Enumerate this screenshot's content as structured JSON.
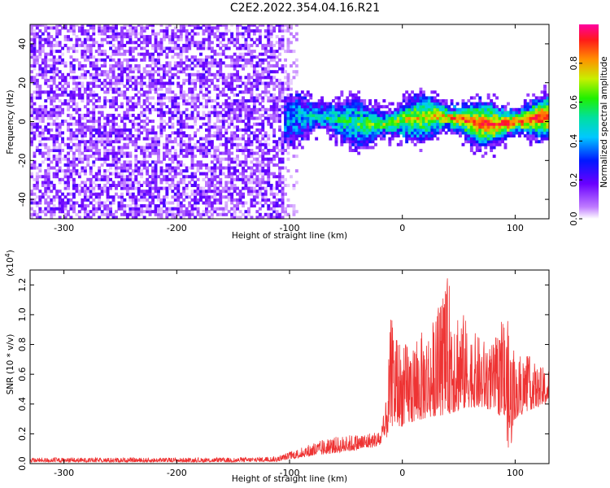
{
  "title": "C2E2.2022.354.04.16.R21",
  "chart_data": [
    {
      "type": "heatmap",
      "name": "spectrogram",
      "xlabel": "Height of straight line (km)",
      "ylabel": "Frequency (Hz)",
      "xlim": [
        -330,
        130
      ],
      "ylim": [
        -50,
        50
      ],
      "xticks": [
        -300,
        -200,
        -100,
        0,
        100
      ],
      "yticks": [
        -40,
        -20,
        0,
        20,
        40
      ],
      "x_tick_labels": [
        "-300",
        "-200",
        "-100",
        "0",
        "100"
      ],
      "y_tick_labels": [
        "-40",
        "-20",
        "0",
        "20",
        "40"
      ],
      "colorbar": {
        "label": "Normalized spectral amplitude",
        "range": [
          0,
          1
        ],
        "ticks": [
          0.0,
          0.2,
          0.4,
          0.6,
          0.8
        ],
        "tick_labels": [
          "0.0",
          "0.2",
          "0.4",
          "0.6",
          "0.8"
        ],
        "colormap": "rainbow (white-violet-blue-cyan-green-yellow-red-magenta)"
      },
      "regions": [
        {
          "x_range": [
            -330,
            -105
          ],
          "description": "noise",
          "freq_range": [
            -50,
            50
          ],
          "amplitude": 0.05
        },
        {
          "x_range": [
            -105,
            130
          ],
          "description": "signal band",
          "freq_center": 0,
          "freq_halfwidth": 8,
          "amplitude_range": [
            0.1,
            0.95
          ]
        }
      ]
    },
    {
      "type": "line",
      "name": "snr",
      "xlabel": "Height of straight line (km)",
      "ylabel": "SNR (10 * v/v)",
      "exponent_label": "(x10",
      "exponent_power": "4",
      "exponent_close": ")",
      "xlim": [
        -330,
        130
      ],
      "ylim": [
        0,
        13000
      ],
      "xticks": [
        -300,
        -200,
        -100,
        0,
        100
      ],
      "yticks": [
        0,
        2000,
        4000,
        6000,
        8000,
        10000,
        12000
      ],
      "x_tick_labels": [
        "-300",
        "-200",
        "-100",
        "0",
        "100"
      ],
      "y_tick_labels": [
        "0.0",
        "0.2",
        "0.4",
        "0.6",
        "0.8",
        "1.0",
        "1.2"
      ],
      "color": "#ee3333",
      "envelope": {
        "x": [
          -330,
          -250,
          -150,
          -110,
          -100,
          -80,
          -60,
          -40,
          -20,
          -15,
          -10,
          0,
          20,
          30,
          40,
          50,
          60,
          80,
          90,
          95,
          100,
          110,
          120,
          130
        ],
        "low": [
          100,
          100,
          100,
          150,
          300,
          500,
          700,
          900,
          1200,
          1500,
          2500,
          2500,
          3000,
          3200,
          3300,
          3500,
          3800,
          3600,
          3000,
          500,
          3000,
          3500,
          3800,
          4000
        ],
        "high": [
          400,
          400,
          400,
          500,
          800,
          1400,
          1800,
          2000,
          2200,
          3800,
          10000,
          8000,
          9000,
          10000,
          12500,
          11000,
          9000,
          8000,
          10000,
          9500,
          7000,
          7500,
          6500,
          6500
        ]
      }
    }
  ]
}
